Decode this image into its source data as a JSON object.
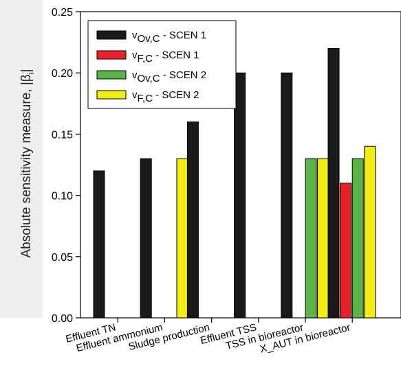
{
  "chart_data": {
    "type": "bar",
    "ylabel": "Absolute sensitivity measure, |β",
    "ylabel_subscript": "i",
    "ylabel_suffix": "|",
    "ylim": [
      0,
      0.25
    ],
    "yticks": [
      "0.00",
      "0.05",
      "0.10",
      "0.15",
      "0.20",
      "0.25"
    ],
    "ytick_values": [
      0,
      0.05,
      0.1,
      0.15,
      0.2,
      0.25
    ],
    "categories": [
      "Effluent TN",
      "Effluent ammonium",
      "Sludge production",
      "Effluent TSS",
      "TSS in bioreactor",
      "X_AUT in bioreactor"
    ],
    "series": [
      {
        "name": "vOv,C - SCEN 1",
        "sym": "v",
        "sub": "Ov,C",
        "rest": " - SCEN 1",
        "color": "#1a1a1a",
        "values": [
          0.12,
          0.13,
          0.16,
          0.2,
          0.2,
          0.22
        ]
      },
      {
        "name": "vF,C - SCEN 1",
        "sym": "v",
        "sub": "F,C",
        "rest": " - SCEN 1",
        "color": "#e8212b",
        "values": [
          0,
          0,
          0,
          0,
          0,
          0.11
        ]
      },
      {
        "name": "vOv,C - SCEN 2",
        "sym": "v",
        "sub": "Ov,C",
        "rest": " - SCEN 2",
        "color": "#5ab547",
        "values": [
          0,
          0,
          0,
          0,
          0.13,
          0.13
        ]
      },
      {
        "name": "vF,C - SCEN 2",
        "sym": "v",
        "sub": "F,C",
        "rest": " - SCEN 2",
        "color": "#f2ee12",
        "values": [
          0,
          0.13,
          0,
          0,
          0.13,
          0.14
        ]
      }
    ],
    "legend_position": "top-left",
    "grid": false
  }
}
